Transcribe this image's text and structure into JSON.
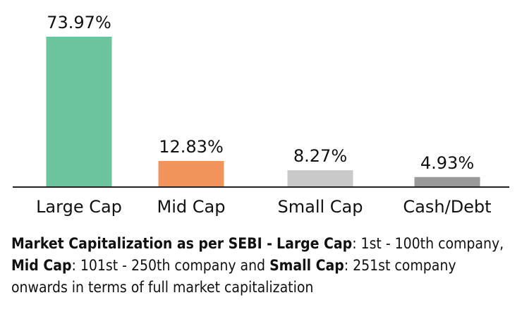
{
  "chart_data": {
    "type": "bar",
    "categories": [
      "Large Cap",
      "Mid Cap",
      "Small Cap",
      "Cash/Debt"
    ],
    "values": [
      73.97,
      12.83,
      8.27,
      4.93
    ],
    "value_labels": [
      "73.97%",
      "12.83%",
      "8.27%",
      "4.93%"
    ],
    "colors": [
      "#6cc49e",
      "#f0945c",
      "#c9c9c9",
      "#9a9a9a"
    ],
    "ylim": [
      0,
      73.97
    ],
    "grid": false,
    "legend": "none"
  },
  "footnote": {
    "heading": "Market Capitalization as per SEBI -",
    "large_term": "Large Cap",
    "large_def": ": 1st - 100th company, ",
    "mid_term": "Mid Cap",
    "mid_def": ": 101st - 250th company and ",
    "small_term": "Small Cap",
    "small_def": ": 251st company onwards in terms of full market capitalization"
  }
}
